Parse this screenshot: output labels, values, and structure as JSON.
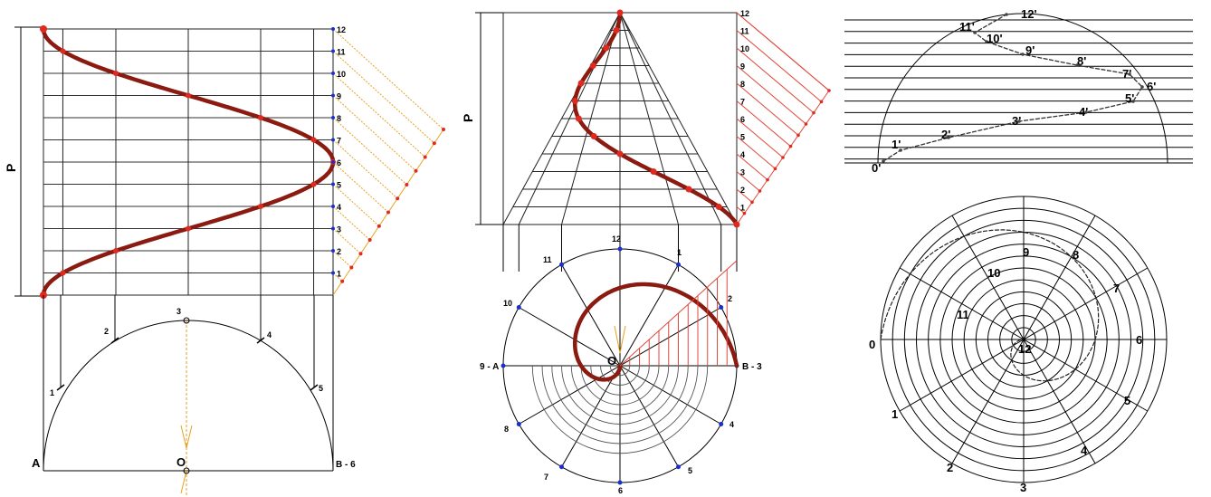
{
  "panel1": {
    "pitch_label": "P",
    "scale_labels": [
      "1",
      "2",
      "3",
      "4",
      "5",
      "6",
      "7",
      "8",
      "9",
      "10",
      "11",
      "12"
    ],
    "semicircle_labels": [
      "1",
      "2",
      "3",
      "4",
      "5"
    ],
    "label_a": "A",
    "label_b": "B - 6",
    "label_o": "O"
  },
  "panel2": {
    "pitch_label": "P",
    "scale_labels": [
      "1",
      "2",
      "3",
      "4",
      "5",
      "6",
      "7",
      "8",
      "9",
      "10",
      "11",
      "12"
    ],
    "circle_labels": [
      "1",
      "2",
      "4",
      "5",
      "6",
      "7",
      "8",
      "10",
      "11",
      "12"
    ],
    "label_a": "9 - A",
    "label_b": "B - 3",
    "label_o": "O"
  },
  "panel3": {
    "front_labels": [
      "0'",
      "1'",
      "2'",
      "3'",
      "4'",
      "5'",
      "6'",
      "7'",
      "8'",
      "9'",
      "10'",
      "11'",
      "12'"
    ],
    "plan_labels": [
      "0",
      "1",
      "2",
      "3",
      "4",
      "5",
      "6",
      "7",
      "8",
      "9",
      "10",
      "11",
      "12"
    ]
  },
  "colors": {
    "curve": "#8b1a10",
    "projection_red": "#e0483a",
    "projection_orange": "#e8a020",
    "point_blue": "#1a2fd0",
    "point_red": "#e02a20"
  }
}
